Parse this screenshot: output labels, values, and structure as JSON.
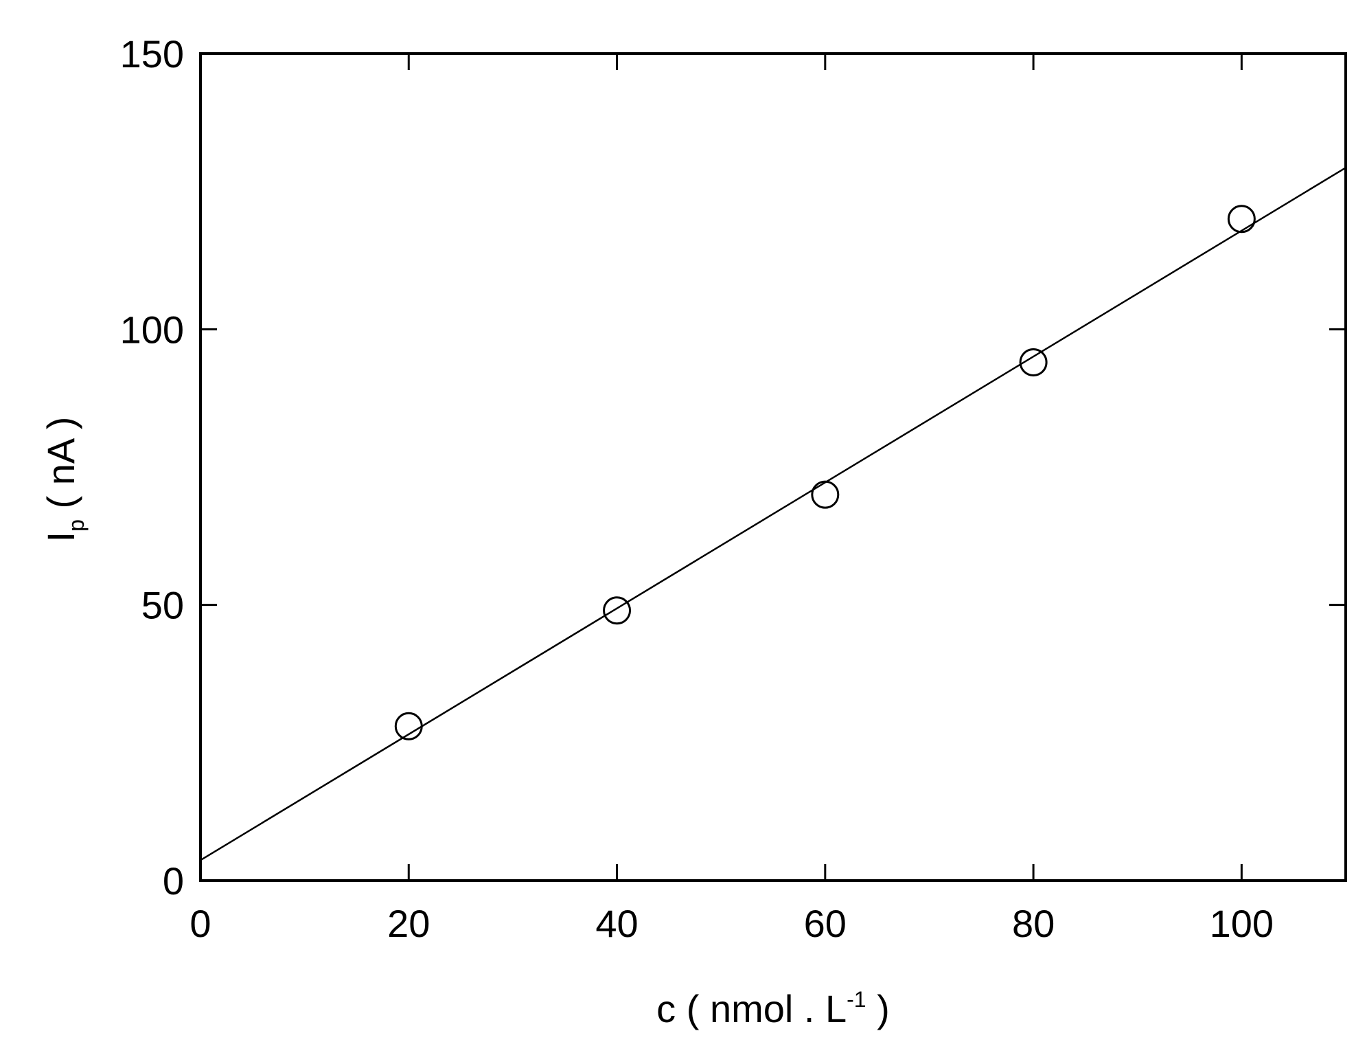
{
  "chart_data": {
    "type": "scatter",
    "title": "",
    "xlabel": {
      "main": "c ( nmol . L",
      "superscript": "-1",
      "close": " )"
    },
    "ylabel": {
      "main": "I",
      "subscript": "p",
      "rest": " ( nA )"
    },
    "xlim": [
      0,
      110
    ],
    "ylim": [
      0,
      150
    ],
    "x_ticks": [
      0,
      20,
      40,
      60,
      80,
      100
    ],
    "y_ticks": [
      0,
      50,
      100,
      150
    ],
    "x_tick_labels": [
      "0",
      "20",
      "40",
      "60",
      "80",
      "100"
    ],
    "y_tick_labels": [
      "0",
      "50",
      "100",
      "150"
    ],
    "grid": false,
    "series": [
      {
        "marker": "open-circle",
        "x": [
          20,
          40,
          60,
          80,
          100
        ],
        "y": [
          28,
          49,
          70,
          94,
          120
        ]
      }
    ],
    "fit_line": {
      "x": [
        0,
        110
      ],
      "y": [
        3.7,
        129.3
      ]
    },
    "colors": {
      "axes": "#000000",
      "markers": "#000000",
      "line": "#000000"
    }
  }
}
